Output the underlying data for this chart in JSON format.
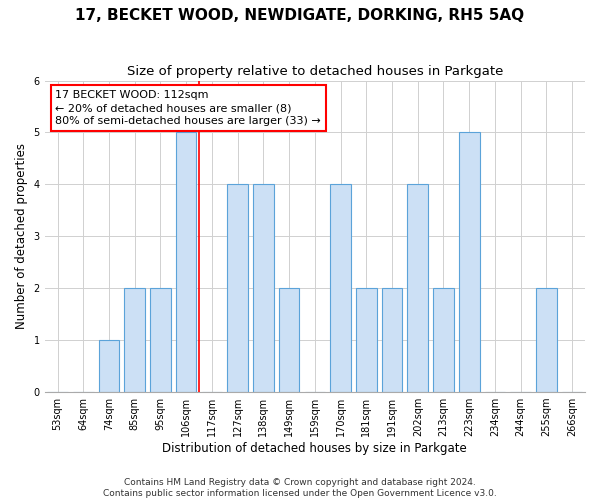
{
  "title": "17, BECKET WOOD, NEWDIGATE, DORKING, RH5 5AQ",
  "subtitle": "Size of property relative to detached houses in Parkgate",
  "xlabel": "Distribution of detached houses by size in Parkgate",
  "ylabel": "Number of detached properties",
  "categories": [
    "53sqm",
    "64sqm",
    "74sqm",
    "85sqm",
    "95sqm",
    "106sqm",
    "117sqm",
    "127sqm",
    "138sqm",
    "149sqm",
    "159sqm",
    "170sqm",
    "181sqm",
    "191sqm",
    "202sqm",
    "213sqm",
    "223sqm",
    "234sqm",
    "244sqm",
    "255sqm",
    "266sqm"
  ],
  "values": [
    0,
    0,
    1,
    2,
    2,
    5,
    0,
    4,
    4,
    2,
    0,
    4,
    2,
    2,
    4,
    2,
    5,
    0,
    0,
    2,
    0
  ],
  "bar_color": "#cce0f5",
  "bar_edge_color": "#5ba3d9",
  "redline_x": 5.5,
  "annotation_line1": "17 BECKET WOOD: 112sqm",
  "annotation_line2": "← 20% of detached houses are smaller (8)",
  "annotation_line3": "80% of semi-detached houses are larger (33) →",
  "ylim": [
    0,
    6
  ],
  "yticks": [
    0,
    1,
    2,
    3,
    4,
    5,
    6
  ],
  "background_color": "#ffffff",
  "footer_line1": "Contains HM Land Registry data © Crown copyright and database right 2024.",
  "footer_line2": "Contains public sector information licensed under the Open Government Licence v3.0.",
  "grid_color": "#d0d0d0",
  "title_fontsize": 11,
  "subtitle_fontsize": 9.5,
  "axis_label_fontsize": 8.5,
  "tick_fontsize": 7,
  "annotation_fontsize": 8,
  "footer_fontsize": 6.5
}
